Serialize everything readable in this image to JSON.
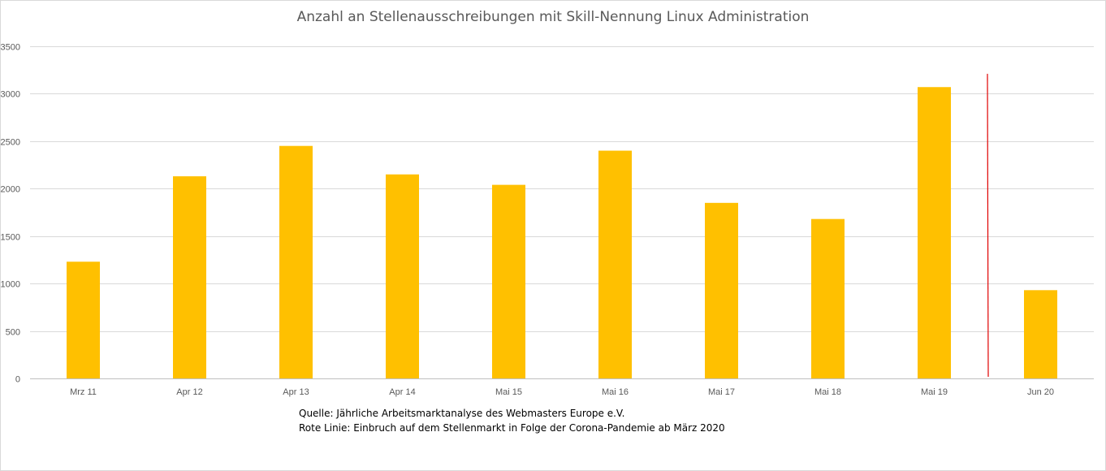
{
  "chart_data": {
    "type": "bar",
    "title": "Anzahl an Stellenausschreibungen mit Skill-Nennung Linux Administration",
    "xlabel": "",
    "ylabel": "",
    "categories": [
      "Mrz 11",
      "Apr 12",
      "Apr 13",
      "Apr 14",
      "Mai 15",
      "Mai 16",
      "Mai 17",
      "Mai 18",
      "Mai 19",
      "Jun 20"
    ],
    "values": [
      1230,
      2130,
      2450,
      2150,
      2040,
      2400,
      1850,
      1680,
      3070,
      930
    ],
    "ylim": [
      0,
      3500
    ],
    "yticks": [
      0,
      500,
      1000,
      1500,
      2000,
      2500,
      3000,
      3500
    ],
    "grid": true,
    "legend": "none",
    "bar_color": "#FFC000",
    "annotation_line": {
      "color": "#E00000",
      "between": [
        "Mai 19",
        "Jun 20"
      ],
      "top_value": 3210
    }
  },
  "notes": {
    "source": "Quelle: Jährliche Arbeitsmarktanalyse des Webmasters Europe e.V.",
    "red_line": "Rote Linie: Einbruch auf dem Stellenmarkt in Folge der Corona-Pandemie ab März 2020"
  }
}
